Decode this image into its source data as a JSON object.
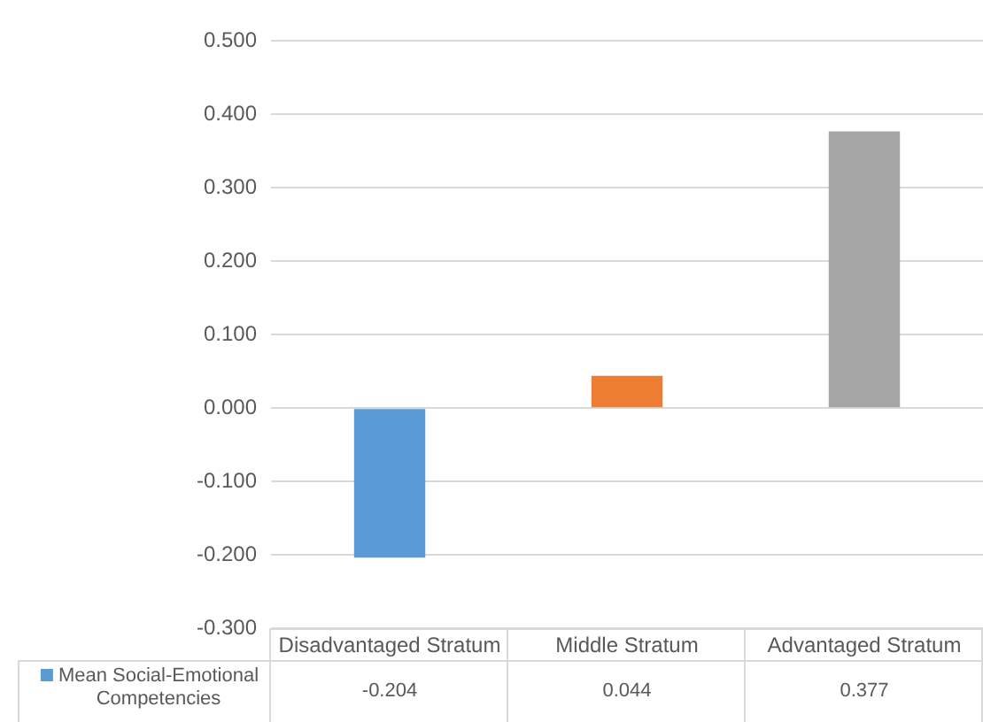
{
  "chart_data": {
    "type": "bar",
    "categories": [
      "Disadvantaged Stratum",
      "Middle Stratum",
      "Advantaged Stratum"
    ],
    "series": [
      {
        "name": "Mean Social-Emotional Competencies",
        "color": "#5b9bd5",
        "colors": [
          "#5b9bd5",
          "#ed7d31",
          "#a5a5a5"
        ],
        "values": [
          -0.204,
          0.044,
          0.377
        ]
      }
    ],
    "ylim": [
      -0.3,
      0.5
    ],
    "yticks": [
      {
        "value": -0.3,
        "label": "-0.300"
      },
      {
        "value": -0.2,
        "label": "-0.200"
      },
      {
        "value": -0.1,
        "label": "-0.100"
      },
      {
        "value": 0,
        "label": "0.000"
      },
      {
        "value": 0.1,
        "label": "0.100"
      },
      {
        "value": 0.2,
        "label": "0.200"
      },
      {
        "value": 0.3,
        "label": "0.300"
      },
      {
        "value": 0.4,
        "label": "0.400"
      },
      {
        "value": 0.5,
        "label": "0.500"
      }
    ],
    "grid": "y",
    "data_labels": true
  }
}
